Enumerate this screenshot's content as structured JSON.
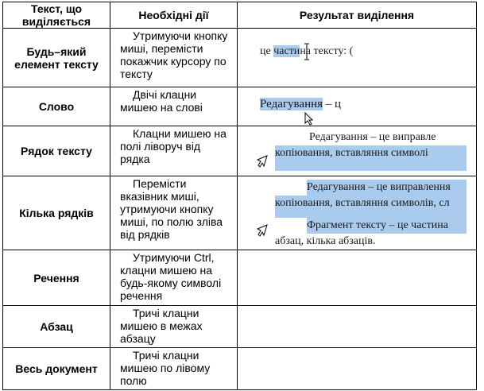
{
  "headers": [
    "Текст, що виділяється",
    "Необхідні дії",
    "Результат виділення"
  ],
  "rows": [
    {
      "target": "Будь–який елемент тексту",
      "action": "Утримуючи кнопку миші, перемісти покажчик курсору по тексту"
    },
    {
      "target": "Слово",
      "action": "Двічі клацни мишею на слові"
    },
    {
      "target": "Рядок тексту",
      "action": "Клацни мишею на полі ліворуч від рядка"
    },
    {
      "target": "Кілька рядків",
      "action": "Перемісти вказівник миші, утримуючи кнопку миші, по полю зліва від рядків"
    },
    {
      "target": "Речення",
      "action": "Утримуючи Ctrl, клацни мишею на будь-якому символі речення"
    },
    {
      "target": "Абзац",
      "action": "Тричі клацни мишею в межах абзацу"
    },
    {
      "target": "Весь документ",
      "action": "Тричі клацни мишею по лівому полю"
    }
  ],
  "examples": {
    "r1": {
      "before": "це ",
      "selected": "части",
      "after": "на тексту: ("
    },
    "r2": {
      "selected": "Редагування",
      "after": " – ц"
    },
    "r3": {
      "line1": "Редагування – це виправле",
      "line2": "копіювання, вставляння символі"
    },
    "r4": {
      "line1": "Редагування – це виправлення",
      "line2": "копіювання, вставляння символів, сл",
      "line3": "Фрагмент тексту – це частина",
      "line4": "абзац, кілька абзаців."
    }
  },
  "highlight_color": "#a9cbee"
}
